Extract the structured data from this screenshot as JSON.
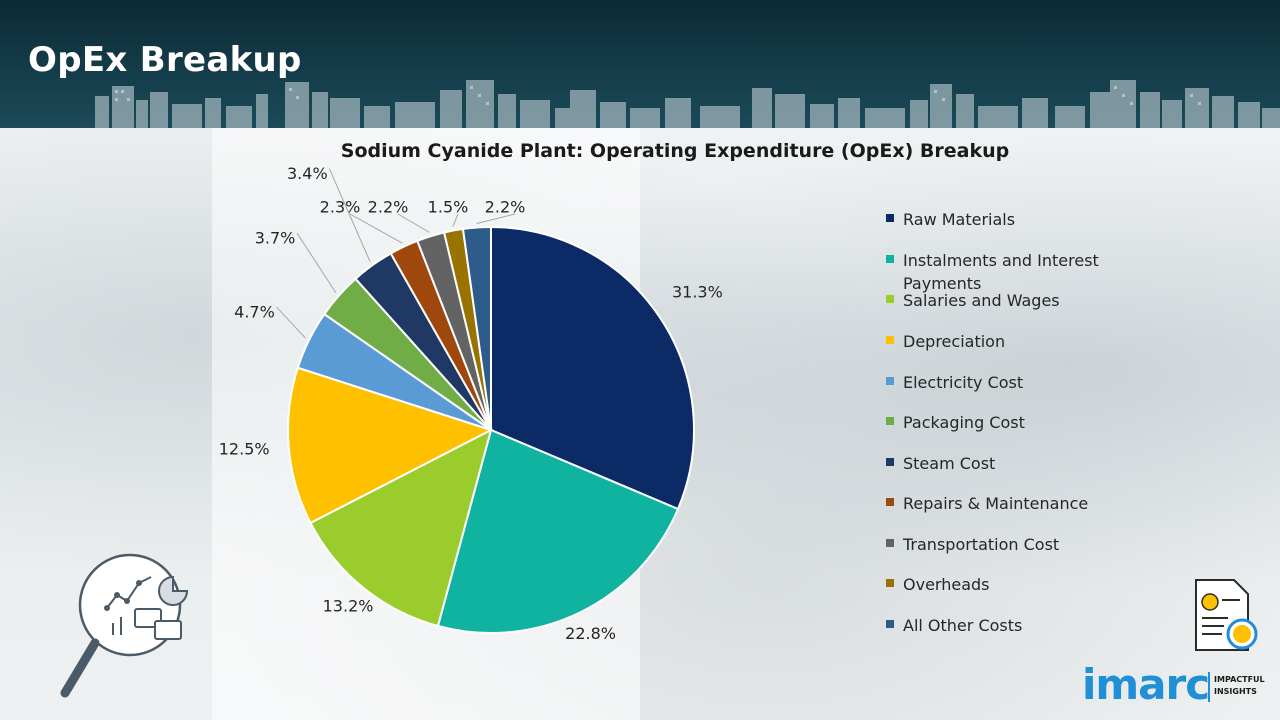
{
  "header": {
    "title": "OpEx Breakup"
  },
  "brand": {
    "wordmark": "imarc",
    "tagline_line1": "IMPACTFUL",
    "tagline_line2": "INSIGHTS",
    "color": "#1f8fd6"
  },
  "icons": {
    "analytics": "magnifier-chart-icon",
    "document": "dollar-document-icon"
  },
  "chart_data": {
    "type": "pie",
    "title": "Sodium Cyanide Plant: Operating Expenditure (OpEx) Breakup",
    "start_angle_deg": 0,
    "direction": "clockwise",
    "legend_position": "right",
    "slices": [
      {
        "name": "Raw Materials",
        "value": 31.3,
        "label": "31.3%",
        "color": "#0c2a66"
      },
      {
        "name": "Instalments and Interest Payments",
        "value": 22.8,
        "label": "22.8%",
        "color": "#0fb3a0"
      },
      {
        "name": "Salaries and Wages",
        "value": 13.2,
        "label": "13.2%",
        "color": "#9acd2b"
      },
      {
        "name": "Depreciation",
        "value": 12.5,
        "label": "12.5%",
        "color": "#ffc000"
      },
      {
        "name": "Electricity Cost",
        "value": 4.7,
        "label": "4.7%",
        "color": "#5b9bd5"
      },
      {
        "name": "Packaging Cost",
        "value": 3.7,
        "label": "3.7%",
        "color": "#70ad47"
      },
      {
        "name": "Steam Cost",
        "value": 3.4,
        "label": "3.4%",
        "color": "#203864"
      },
      {
        "name": "Repairs & Maintenance",
        "value": 2.3,
        "label": "2.3%",
        "color": "#9e480e"
      },
      {
        "name": "Transportation Cost",
        "value": 2.2,
        "label": "2.2%",
        "color": "#636363"
      },
      {
        "name": "Overheads",
        "value": 1.5,
        "label": "1.5%",
        "color": "#997300"
      },
      {
        "name": "All Other Costs",
        "value": 2.2,
        "label": "2.2%",
        "color": "#2e5c8a"
      }
    ]
  }
}
